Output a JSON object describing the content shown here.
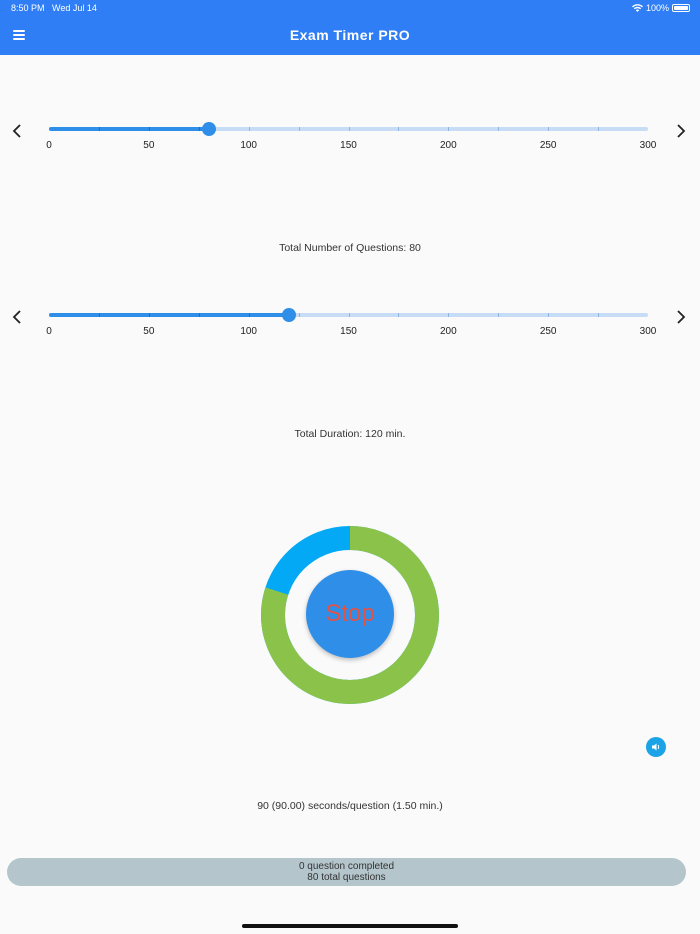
{
  "status_bar": {
    "time": "8:50 PM",
    "date": "Wed Jul 14",
    "battery": "100%"
  },
  "app": {
    "title": "Exam Timer PRO",
    "menu_icon": "hamburger-icon"
  },
  "questions_slider": {
    "min": 0,
    "max": 300,
    "value": 80,
    "tick_labels": [
      "0",
      "50",
      "100",
      "150",
      "200",
      "250",
      "300"
    ],
    "caption": "Total Number of Questions: 80"
  },
  "duration_slider": {
    "min": 0,
    "max": 300,
    "value": 120,
    "tick_labels": [
      "0",
      "50",
      "100",
      "150",
      "200",
      "250",
      "300"
    ],
    "caption": "Total Duration: 120 min."
  },
  "timer": {
    "button_label": "Stop",
    "ring_progress_fraction": 0.8,
    "ring_color_remaining": "#8bc34a",
    "ring_color_elapsed": "#03a9f4"
  },
  "sound_icon": "volume-icon",
  "info_text": "90 (90.00) seconds/question (1.50 min.)",
  "progress": {
    "completed_text": "0 question completed",
    "total_text": "80 total questions"
  },
  "colors": {
    "accent": "#2f7ef5",
    "slider": "#2f8fe8",
    "stop_text": "#e25347"
  }
}
